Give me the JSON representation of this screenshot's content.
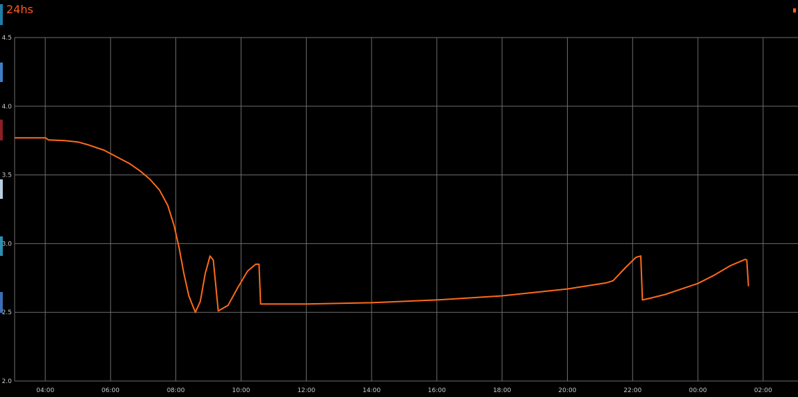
{
  "title": "24hs",
  "colors": {
    "series": "#ff6a1a",
    "title": "#ff5a1f",
    "grid": "#6e6e6e",
    "background": "#000000"
  },
  "chart_data": {
    "type": "line",
    "title": "24hs",
    "xlabel": "",
    "ylabel": "",
    "ylim": [
      2.0,
      4.5
    ],
    "grid": true,
    "legend": "none",
    "y_ticks": [
      "2.0",
      "2.5",
      "3.0",
      "3.5",
      "4.0",
      "4.5"
    ],
    "x_ticks": [
      "04:00",
      "06:00",
      "08:00",
      "10:00",
      "12:00",
      "14:00",
      "16:00",
      "18:00",
      "20:00",
      "22:00",
      "00:00",
      "02:00"
    ],
    "x_unit": "hours_of_day_continuous",
    "series": [
      {
        "x": [
          3.06,
          3.9,
          4.0,
          4.1,
          4.6,
          5.0,
          5.3,
          5.8,
          6.2,
          6.6,
          6.9,
          7.2,
          7.5,
          7.75,
          7.95,
          8.1,
          8.25,
          8.4,
          8.6,
          8.75,
          8.9,
          9.05,
          9.15,
          9.3,
          9.6,
          9.9,
          10.2,
          10.45,
          10.55,
          10.6,
          12.0,
          14.0,
          16.0,
          18.0,
          20.0,
          21.2,
          21.4,
          21.8,
          22.1,
          22.25,
          22.3,
          22.5,
          23.0,
          23.5,
          24.0,
          24.5,
          25.0,
          25.4,
          25.45,
          25.5,
          25.55
        ],
        "y": [
          3.77,
          3.77,
          3.77,
          3.755,
          3.75,
          3.74,
          3.72,
          3.68,
          3.63,
          3.58,
          3.53,
          3.47,
          3.39,
          3.28,
          3.13,
          2.97,
          2.78,
          2.62,
          2.5,
          2.58,
          2.78,
          2.91,
          2.88,
          2.51,
          2.55,
          2.68,
          2.8,
          2.85,
          2.85,
          2.56,
          2.56,
          2.57,
          2.59,
          2.62,
          2.67,
          2.715,
          2.73,
          2.83,
          2.9,
          2.91,
          2.59,
          2.6,
          2.63,
          2.67,
          2.71,
          2.77,
          2.84,
          2.88,
          2.885,
          2.88,
          2.69
        ]
      }
    ]
  }
}
